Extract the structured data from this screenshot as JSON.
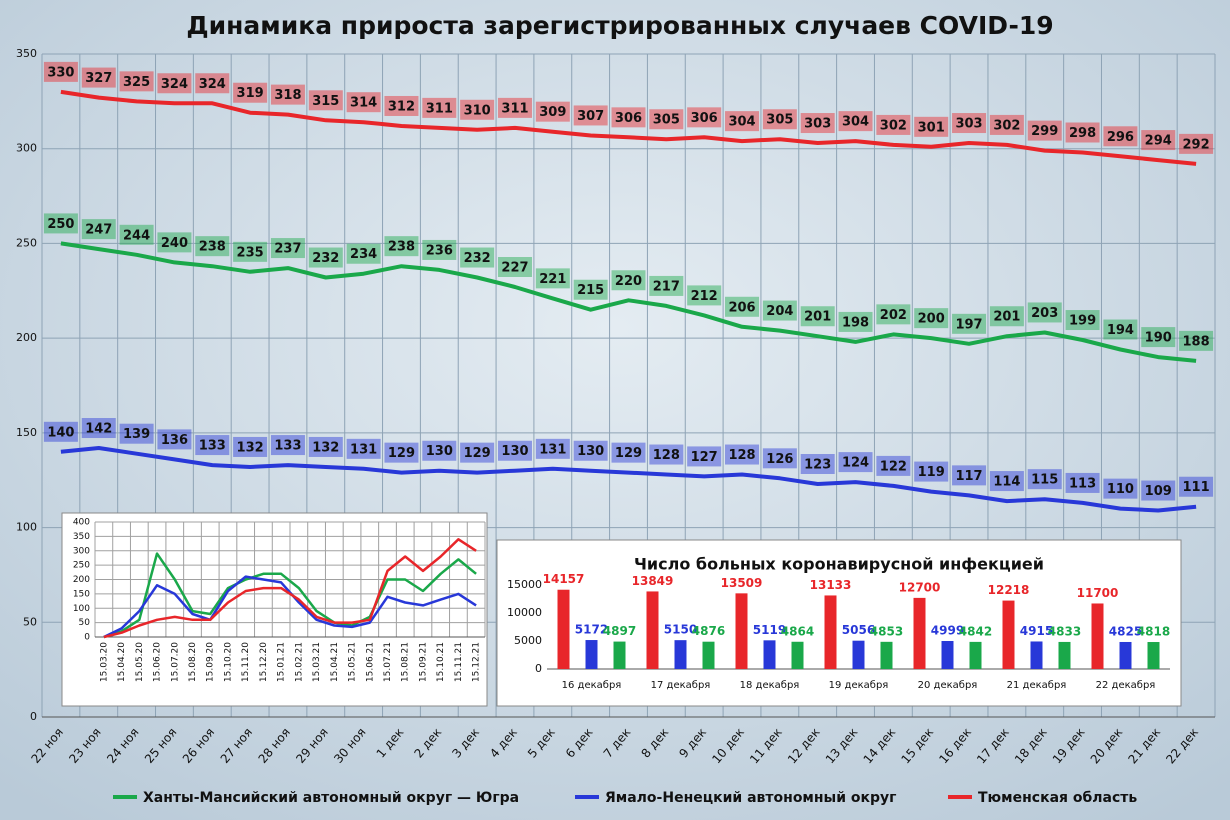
{
  "chart_data": [
    {
      "type": "line",
      "title": "Динамика прироста зарегистрированных случаев COVID-19",
      "categories": [
        "22 ноя",
        "23 ноя",
        "24 ноя",
        "25 ноя",
        "26 ноя",
        "27 ноя",
        "28 ноя",
        "29 ноя",
        "30 ноя",
        "1 дек",
        "2 дек",
        "3 дек",
        "4 дек",
        "5 дек",
        "6 дек",
        "7 дек",
        "8 дек",
        "9 дек",
        "10 дек",
        "11 дек",
        "12 дек",
        "13 дек",
        "14 дек",
        "15 дек",
        "16 дек",
        "17 дек",
        "18 дек",
        "19 дек",
        "20 дек",
        "21 дек",
        "22 дек"
      ],
      "series": [
        {
          "name": "Ханты-Мансийский автономный округ — Югра",
          "color": "#1aa84a",
          "values": [
            250,
            247,
            244,
            240,
            238,
            235,
            237,
            232,
            234,
            238,
            236,
            232,
            227,
            221,
            215,
            220,
            217,
            212,
            206,
            204,
            201,
            198,
            202,
            200,
            197,
            201,
            203,
            199,
            194,
            190,
            188
          ]
        },
        {
          "name": "Ямало-Ненецкий автономный округ",
          "color": "#2838d8",
          "values": [
            140,
            142,
            139,
            136,
            133,
            132,
            133,
            132,
            131,
            129,
            130,
            129,
            130,
            131,
            130,
            129,
            128,
            127,
            128,
            126,
            123,
            124,
            122,
            119,
            117,
            114,
            115,
            113,
            110,
            109,
            111
          ]
        },
        {
          "name": "Тюменская область",
          "color": "#e8262a",
          "values": [
            330,
            327,
            325,
            324,
            324,
            319,
            318,
            315,
            314,
            312,
            311,
            310,
            311,
            309,
            307,
            306,
            305,
            306,
            304,
            305,
            303,
            304,
            302,
            301,
            303,
            302,
            299,
            298,
            296,
            294,
            292
          ]
        }
      ],
      "ylim": [
        0,
        350
      ],
      "yticks": [
        0,
        50,
        100,
        150,
        200,
        250,
        300,
        350
      ],
      "grid": true,
      "value_labels_shown": true,
      "legend": "bottom"
    },
    {
      "type": "line",
      "categories": [
        "15.03.20",
        "15.04.20",
        "15.05.20",
        "15.06.20",
        "15.07.20",
        "15.08.20",
        "15.09.20",
        "15.10.20",
        "15.11.20",
        "15.12.20",
        "15.01.21",
        "15.02.21",
        "15.03.21",
        "15.04.21",
        "15.05.21",
        "15.06.21",
        "15.07.21",
        "15.08.21",
        "15.09.21",
        "15.10.21",
        "15.11.21",
        "15.12.21"
      ],
      "series": [
        {
          "color": "#1aa84a",
          "values": [
            0,
            20,
            60,
            290,
            200,
            90,
            80,
            170,
            200,
            220,
            220,
            170,
            90,
            50,
            40,
            70,
            200,
            200,
            160,
            220,
            270,
            220
          ]
        },
        {
          "color": "#2838d8",
          "values": [
            0,
            30,
            90,
            180,
            150,
            80,
            60,
            160,
            210,
            200,
            190,
            120,
            60,
            40,
            35,
            50,
            140,
            120,
            110,
            130,
            150,
            110
          ]
        },
        {
          "color": "#e8262a",
          "values": [
            0,
            15,
            40,
            60,
            70,
            60,
            60,
            120,
            160,
            170,
            170,
            130,
            70,
            50,
            50,
            60,
            230,
            280,
            230,
            280,
            340,
            300
          ]
        }
      ],
      "ylim": [
        0,
        400
      ],
      "yticks": [
        0,
        50,
        100,
        150,
        200,
        250,
        300,
        350,
        400
      ],
      "grid": true
    },
    {
      "type": "bar",
      "title": "Число больных  коронавирусной  инфекцией",
      "categories": [
        "16 декабря",
        "17 декабря",
        "18 декабря",
        "19 декабря",
        "20 декабря",
        "21 декабря",
        "22 декабря"
      ],
      "series": [
        {
          "color": "#e8262a",
          "values": [
            14157,
            13849,
            13509,
            13133,
            12700,
            12218,
            11700
          ]
        },
        {
          "color": "#2838d8",
          "values": [
            5172,
            5150,
            5119,
            5056,
            4999,
            4915,
            4825
          ]
        },
        {
          "color": "#1aa84a",
          "values": [
            4897,
            4876,
            4864,
            4853,
            4842,
            4833,
            4818
          ]
        }
      ],
      "ylim": [
        0,
        15000
      ],
      "yticks": [
        0,
        5000,
        10000,
        15000
      ],
      "grid": false,
      "value_labels_shown": true
    }
  ]
}
